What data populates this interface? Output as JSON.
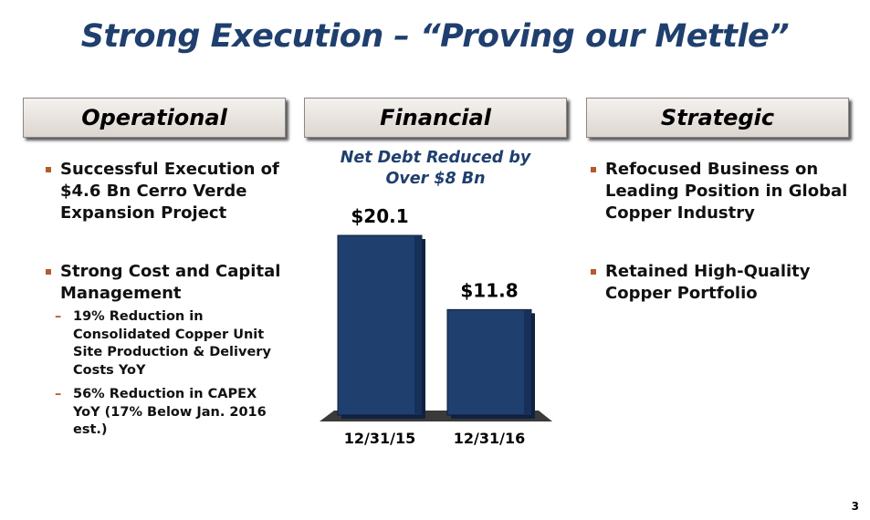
{
  "title": "Strong Execution – “Proving our Mettle”",
  "columns": [
    {
      "heading": "Operational",
      "bullets": [
        {
          "text": "Successful Execution of $4.6 Bn Cerro Verde Expansion Project"
        },
        {
          "text": "Strong Cost and Capital Management",
          "sub": [
            "19% Reduction in Consolidated Copper Unit Site Production & Delivery Costs YoY",
            "56% Reduction in CAPEX YoY (17% Below Jan. 2016 est.)"
          ]
        }
      ]
    },
    {
      "heading": "Financial"
    },
    {
      "heading": "Strategic",
      "bullets": [
        {
          "text": "Refocused Business on Leading Position in Global Copper Industry"
        },
        {
          "text": "Retained High-Quality Copper Portfolio"
        }
      ]
    }
  ],
  "chart_data": {
    "type": "bar",
    "title": "Net Debt Reduced by Over $8 Bn",
    "categories": [
      "12/31/15",
      "12/31/16"
    ],
    "values": [
      20.1,
      11.8
    ],
    "value_labels": [
      "$20.1",
      "$11.8"
    ],
    "color": "#1f3f6e"
  },
  "page_number": "3"
}
